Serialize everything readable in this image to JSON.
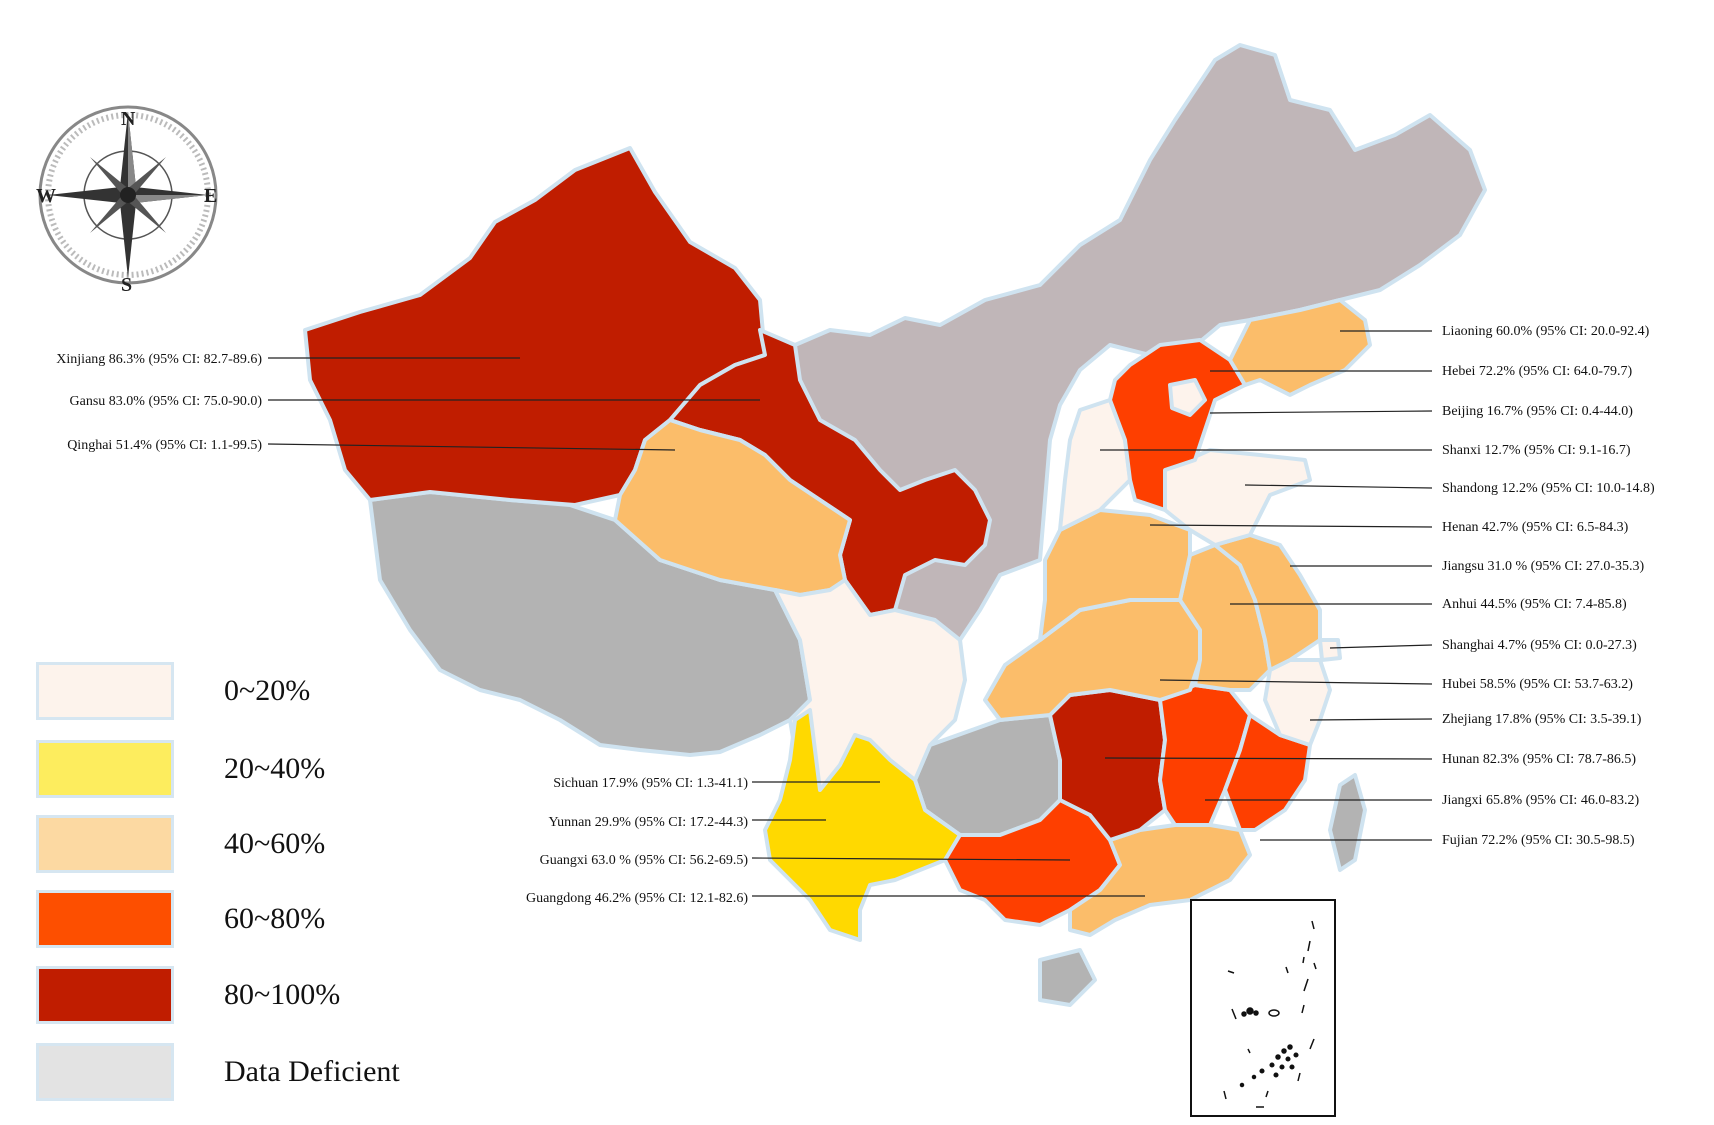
{
  "colors": {
    "bin_0_20": "#fdf3ec",
    "bin_20_40": "#fded5e",
    "bin_40_60": "#fcd9a2",
    "bin_60_80": "#fd4f00",
    "bin_80_100": "#c01d00",
    "data_deficient": "#e3e3e3",
    "map_deficient_north": "#c0b6b8",
    "map_deficient_west": "#b3b3b3",
    "map_40_60": "#fbbd6a",
    "map_20_40": "#ffd900",
    "map_60_80": "#fe3f00",
    "border": "#cfe3f0"
  },
  "compass": {
    "north": "N",
    "south": "S",
    "east": "E",
    "west": "W"
  },
  "legend": [
    {
      "label": "0~20%"
    },
    {
      "label": "20~40%"
    },
    {
      "label": "40~60%"
    },
    {
      "label": "60~80%"
    },
    {
      "label": "80~100%"
    },
    {
      "label": "Data Deficient"
    }
  ],
  "provinces": [
    {
      "name": "Xinjiang",
      "value": 86.3,
      "label": "Xinjiang 86.3%  (95% CI: 82.7-89.6)"
    },
    {
      "name": "Gansu",
      "value": 83.0,
      "label": "Gansu 83.0%  (95% CI: 75.0-90.0)"
    },
    {
      "name": "Qinghai",
      "value": 51.4,
      "label": "Qinghai 51.4%  (95% CI: 1.1-99.5)"
    },
    {
      "name": "Sichuan",
      "value": 17.9,
      "label": "Sichuan 17.9%  (95% CI: 1.3-41.1)"
    },
    {
      "name": "Yunnan",
      "value": 29.9,
      "label": "Yunnan 29.9%  (95% CI: 17.2-44.3)"
    },
    {
      "name": "Guangxi",
      "value": 63.0,
      "label": "Guangxi 63.0 %  (95% CI: 56.2-69.5)"
    },
    {
      "name": "Guangdong",
      "value": 46.2,
      "label": "Guangdong 46.2%  (95% CI: 12.1-82.6)"
    },
    {
      "name": "Liaoning",
      "value": 60.0,
      "label": "Liaoning 60.0%  (95% CI: 20.0-92.4)"
    },
    {
      "name": "Hebei",
      "value": 72.2,
      "label": "Hebei 72.2%  (95% CI: 64.0-79.7)"
    },
    {
      "name": "Beijing",
      "value": 16.7,
      "label": "Beijing 16.7%  (95% CI: 0.4-44.0)"
    },
    {
      "name": "Shanxi",
      "value": 12.7,
      "label": "Shanxi 12.7%  (95% CI: 9.1-16.7)"
    },
    {
      "name": "Shandong",
      "value": 12.2,
      "label": "Shandong 12.2%  (95% CI: 10.0-14.8)"
    },
    {
      "name": "Henan",
      "value": 42.7,
      "label": "Henan 42.7%  (95% CI: 6.5-84.3)"
    },
    {
      "name": "Jiangsu",
      "value": 31.0,
      "label": "Jiangsu 31.0 %  (95% CI: 27.0-35.3)"
    },
    {
      "name": "Anhui",
      "value": 44.5,
      "label": "Anhui 44.5%  (95% CI: 7.4-85.8)"
    },
    {
      "name": "Shanghai",
      "value": 4.7,
      "label": "Shanghai 4.7%  (95% CI: 0.0-27.3)"
    },
    {
      "name": "Hubei",
      "value": 58.5,
      "label": "Hubei 58.5%  (95% CI: 53.7-63.2)"
    },
    {
      "name": "Zhejiang",
      "value": 17.8,
      "label": "Zhejiang 17.8%  (95% CI: 3.5-39.1)"
    },
    {
      "name": "Hunan",
      "value": 82.3,
      "label": "Hunan 82.3%  (95% CI: 78.7-86.5)"
    },
    {
      "name": "Jiangxi",
      "value": 65.8,
      "label": "Jiangxi 65.8%  (95% CI: 46.0-83.2)"
    },
    {
      "name": "Fujian",
      "value": 72.2,
      "label": "Fujian 72.2%  (95% CI: 30.5-98.5)"
    }
  ]
}
